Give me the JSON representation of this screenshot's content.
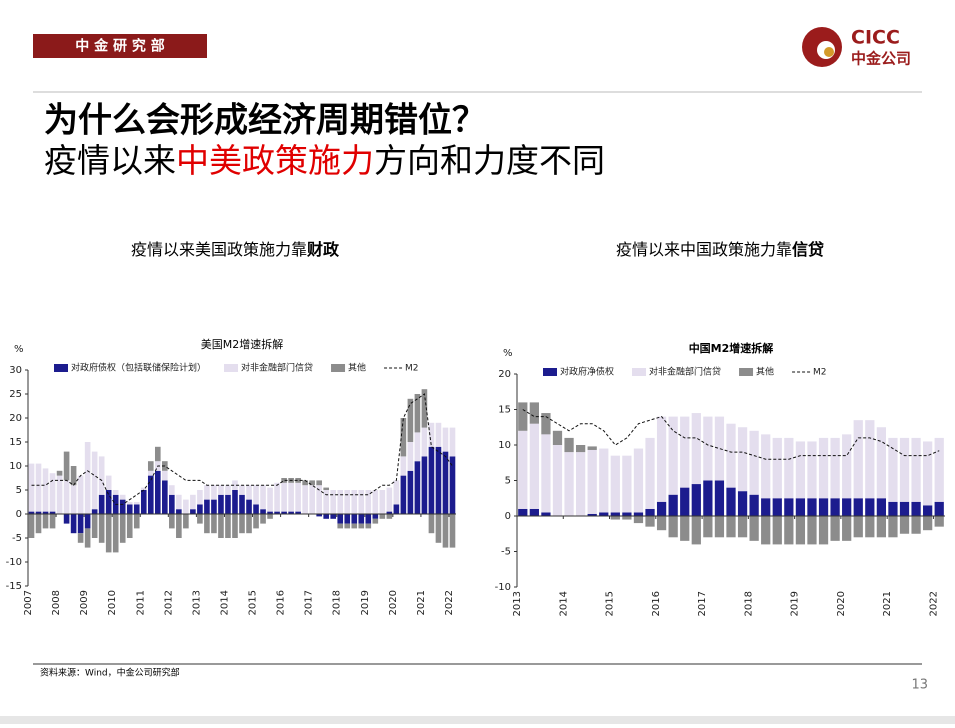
{
  "header": {
    "tag": "中 金 研 究 部",
    "logo_en": "CICC",
    "logo_cn": "中金公司",
    "title": "为什么会形成经济周期错位？",
    "subtitle_parts": [
      "疫情以来",
      "中美政策施力",
      "方向和力度不同"
    ]
  },
  "panels": [
    {
      "caption_parts": [
        "疫情以来美国政策施力靠",
        "财政"
      ]
    },
    {
      "caption_parts": [
        "疫情以来中国政策施力靠",
        "信贷"
      ]
    }
  ],
  "chart_data": [
    {
      "type": "bar",
      "stacked": true,
      "title": "美国M2增速拆解",
      "y_label": "%",
      "categories": [
        "2007",
        null,
        null,
        null,
        "2008",
        null,
        null,
        null,
        "2009",
        null,
        null,
        null,
        "2010",
        null,
        null,
        null,
        "2011",
        null,
        null,
        null,
        "2012",
        null,
        null,
        null,
        "2013",
        null,
        null,
        null,
        "2014",
        null,
        null,
        null,
        "2015",
        null,
        null,
        null,
        "2016",
        null,
        null,
        null,
        "2017",
        null,
        null,
        null,
        "2018",
        null,
        null,
        null,
        "2019",
        null,
        null,
        null,
        "2020",
        null,
        null,
        null,
        "2021",
        null,
        null,
        null,
        "2022"
      ],
      "series": [
        {
          "name": "对政府债权（包括联储保险计划）",
          "color": "#1c1c8e",
          "values": [
            0.5,
            0.5,
            0.5,
            0.5,
            0,
            -2,
            -4,
            -4,
            -3,
            1,
            4,
            5,
            4,
            3,
            2,
            2,
            5,
            8,
            9,
            7,
            4,
            1,
            0,
            1,
            2,
            3,
            3,
            4,
            4,
            5,
            4,
            3,
            2,
            1,
            0.5,
            0.5,
            0.5,
            0.5,
            0.5,
            0,
            0,
            -0.5,
            -1,
            -1,
            -2,
            -2,
            -2,
            -2,
            -2,
            -1,
            0,
            0.5,
            2,
            8,
            9,
            11,
            12,
            14,
            14,
            13,
            12
          ]
        },
        {
          "name": "对非金融部门信贷",
          "color": "#e4deee",
          "values": [
            10,
            10,
            9,
            8,
            8,
            7,
            6,
            8,
            15,
            12,
            8,
            3,
            1,
            1,
            0.5,
            0.5,
            0.5,
            1,
            2,
            2,
            2,
            3,
            3,
            3,
            3,
            3,
            3,
            2,
            2,
            2,
            2,
            3,
            4,
            5,
            5,
            6,
            6,
            6,
            6,
            6,
            6,
            6,
            5,
            5,
            5,
            5,
            5,
            5,
            5,
            5,
            5,
            5,
            5,
            4,
            6,
            6,
            6,
            5,
            5,
            5,
            6
          ]
        },
        {
          "name": "其他",
          "color": "#8c8c8c",
          "values": [
            -5,
            -4,
            -3,
            -3,
            1,
            6,
            4,
            -2,
            -4,
            -5,
            -6,
            -8,
            -8,
            -6,
            -5,
            -3,
            0,
            2,
            3,
            2,
            -3,
            -5,
            -3,
            0,
            -2,
            -4,
            -4,
            -5,
            -5,
            -5,
            -4,
            -4,
            -3,
            -2,
            -1,
            0,
            1,
            1,
            1,
            1,
            1,
            1,
            0.5,
            0,
            -1,
            -1,
            -1,
            -1,
            -1,
            -1,
            -1,
            -1,
            0,
            8,
            9,
            8,
            8,
            -4,
            -6,
            -7,
            -7
          ]
        },
        {
          "name": "M2",
          "type": "line",
          "dashed": true,
          "color": "#111111",
          "values": [
            6,
            6,
            6,
            7,
            7,
            7,
            6,
            8,
            9,
            8,
            7,
            4,
            2,
            2,
            3,
            4,
            5,
            7,
            10,
            10,
            9,
            8,
            7,
            7,
            7,
            6,
            6,
            6,
            6,
            6,
            6,
            6,
            6,
            6,
            6,
            6,
            7,
            7,
            7,
            7,
            6,
            5,
            4,
            4,
            4,
            4,
            4,
            4,
            4,
            5,
            6,
            6,
            7,
            20,
            23,
            24,
            25,
            14,
            13,
            12,
            10
          ]
        }
      ],
      "ylim": [
        -15,
        30
      ],
      "yticks": [
        30,
        25,
        20,
        15,
        10,
        5,
        0,
        -5,
        -10,
        -15
      ]
    },
    {
      "type": "bar",
      "stacked": true,
      "title": "中国M2增速拆解",
      "y_label": "%",
      "categories": [
        "2013",
        null,
        null,
        null,
        "2014",
        null,
        null,
        null,
        "2015",
        null,
        null,
        null,
        "2016",
        null,
        null,
        null,
        "2017",
        null,
        null,
        null,
        "2018",
        null,
        null,
        null,
        "2019",
        null,
        null,
        null,
        "2020",
        null,
        null,
        null,
        "2021",
        null,
        null,
        null,
        "2022"
      ],
      "series": [
        {
          "name": "对政府净债权",
          "color": "#1c1c8e",
          "values": [
            1,
            1,
            0.5,
            0,
            0,
            0,
            0.3,
            0.5,
            0.5,
            0.5,
            0.5,
            1,
            2,
            3,
            4,
            4.5,
            5,
            5,
            4,
            3.5,
            3,
            2.5,
            2.5,
            2.5,
            2.5,
            2.5,
            2.5,
            2.5,
            2.5,
            2.5,
            2.5,
            2.5,
            2,
            2,
            2,
            1.5,
            2
          ]
        },
        {
          "name": "对非金融部门信贷",
          "color": "#e4deee",
          "values": [
            11,
            12,
            11,
            10,
            9,
            9,
            9,
            9,
            8,
            8,
            9,
            10,
            12,
            11,
            10,
            10,
            9,
            9,
            9,
            9,
            9,
            9,
            8.5,
            8.5,
            8,
            8,
            8.5,
            8.5,
            9,
            11,
            11,
            10,
            9,
            9,
            9,
            9,
            9
          ]
        },
        {
          "name": "其他",
          "color": "#8c8c8c",
          "values": [
            4,
            3,
            3,
            2,
            2,
            1,
            0.5,
            0,
            -0.5,
            -0.5,
            -1,
            -1.5,
            -2,
            -3,
            -3.5,
            -4,
            -3,
            -3,
            -3,
            -3,
            -3.5,
            -4,
            -4,
            -4,
            -4,
            -4,
            -4,
            -3.5,
            -3.5,
            -3,
            -3,
            -3,
            -3,
            -2.5,
            -2.5,
            -2,
            -1.5
          ]
        },
        {
          "name": "M2",
          "type": "line",
          "dashed": true,
          "color": "#111111",
          "values": [
            15,
            14,
            14,
            13,
            12,
            13,
            13,
            12,
            10,
            11,
            13,
            13.5,
            14,
            12,
            11,
            11,
            10,
            9.5,
            9,
            9,
            8.5,
            8,
            8,
            8,
            8.5,
            8.5,
            8.5,
            8.5,
            8.5,
            11,
            11,
            10.5,
            9.5,
            8.5,
            8.5,
            8.5,
            9.2
          ]
        }
      ],
      "ylim": [
        -10,
        20
      ],
      "yticks": [
        20,
        15,
        10,
        5,
        0,
        -5,
        -10
      ]
    }
  ],
  "footer": {
    "source": "资料来源：Wind，中金公司研究部",
    "page": "13"
  }
}
